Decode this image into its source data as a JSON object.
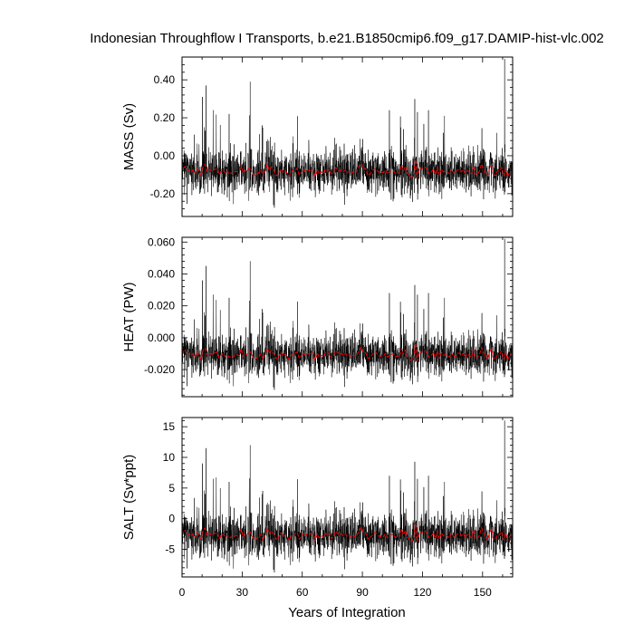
{
  "chart_data": {
    "type": "line",
    "title": "Indonesian Throughflow I Transports, b.e21.B1850cmip6.f09_g17.DAMIP-hist-vlc.002",
    "xlabel": "Years of Integration",
    "xlim": [
      0,
      165
    ],
    "x_ticks": [
      0,
      30,
      60,
      90,
      120,
      150
    ],
    "x_tick_labels": [
      "0",
      "30",
      "60",
      "90",
      "120",
      "150"
    ],
    "grid": false,
    "legend": "none",
    "colors": {
      "monthly": "#000000",
      "annual_mean": "#ff0000"
    },
    "panels": [
      {
        "name": "mass",
        "ylabel": "MASS (Sv)",
        "ylim": [
          -0.32,
          0.52
        ],
        "y_ticks": [
          -0.2,
          0.0,
          0.2,
          0.4
        ],
        "y_tick_labels": [
          "-0.20",
          "0.00",
          "0.20",
          "0.40"
        ],
        "baseline": -0.085,
        "typical_range": [
          -0.22,
          0.05
        ],
        "series": [
          {
            "kind": "monthly",
            "style": "thin black line, high-frequency variability"
          },
          {
            "kind": "annual_mean",
            "style": "red dashed line"
          }
        ],
        "spikes": [
          {
            "x": 10.2,
            "y": 0.31
          },
          {
            "x": 12.0,
            "y": 0.37
          },
          {
            "x": 15.5,
            "y": 0.24
          },
          {
            "x": 23.5,
            "y": 0.22
          },
          {
            "x": 34.0,
            "y": 0.39
          },
          {
            "x": 40.0,
            "y": 0.16
          },
          {
            "x": 103.5,
            "y": 0.24
          },
          {
            "x": 117.5,
            "y": 0.23
          },
          {
            "x": 123.0,
            "y": 0.24
          },
          {
            "x": 131.0,
            "y": 0.21
          },
          {
            "x": 157.0,
            "y": 0.12
          },
          {
            "x": 161.0,
            "y": 0.51
          }
        ]
      },
      {
        "name": "heat",
        "ylabel": "HEAT (PW)",
        "ylim": [
          -0.037,
          0.063
        ],
        "y_ticks": [
          -0.02,
          0.0,
          0.02,
          0.04,
          0.06
        ],
        "y_tick_labels": [
          "-0.020",
          "0.000",
          "0.020",
          "0.040",
          "0.060"
        ],
        "baseline": -0.011,
        "typical_range": [
          -0.026,
          0.005
        ],
        "series": [
          {
            "kind": "monthly",
            "style": "thin black line, high-frequency variability"
          },
          {
            "kind": "annual_mean",
            "style": "red dashed line"
          }
        ],
        "spikes": [
          {
            "x": 10.2,
            "y": 0.036
          },
          {
            "x": 12.0,
            "y": 0.045
          },
          {
            "x": 15.5,
            "y": 0.027
          },
          {
            "x": 23.5,
            "y": 0.025
          },
          {
            "x": 34.0,
            "y": 0.048
          },
          {
            "x": 40.0,
            "y": 0.018
          },
          {
            "x": 103.5,
            "y": 0.028
          },
          {
            "x": 117.5,
            "y": 0.027
          },
          {
            "x": 123.0,
            "y": 0.028
          },
          {
            "x": 131.0,
            "y": 0.025
          },
          {
            "x": 157.0,
            "y": 0.014
          },
          {
            "x": 161.0,
            "y": 0.062
          }
        ]
      },
      {
        "name": "salt",
        "ylabel": "SALT (Sv*ppt)",
        "ylim": [
          -9.5,
          16.5
        ],
        "y_ticks": [
          -5,
          0,
          5,
          10,
          15
        ],
        "y_tick_labels": [
          "-5",
          "0",
          "5",
          "10",
          "15"
        ],
        "baseline": -2.8,
        "typical_range": [
          -7.0,
          1.5
        ],
        "series": [
          {
            "kind": "monthly",
            "style": "thin black line, high-frequency variability"
          },
          {
            "kind": "annual_mean",
            "style": "red dashed line"
          }
        ],
        "spikes": [
          {
            "x": 10.2,
            "y": 9.0
          },
          {
            "x": 12.0,
            "y": 11.5
          },
          {
            "x": 15.5,
            "y": 6.5
          },
          {
            "x": 23.5,
            "y": 6.0
          },
          {
            "x": 34.0,
            "y": 12.0
          },
          {
            "x": 40.0,
            "y": 4.0
          },
          {
            "x": 103.5,
            "y": 7.0
          },
          {
            "x": 117.5,
            "y": 6.5
          },
          {
            "x": 123.0,
            "y": 7.0
          },
          {
            "x": 131.0,
            "y": 6.0
          },
          {
            "x": 157.0,
            "y": 3.0
          },
          {
            "x": 161.0,
            "y": 16.0
          }
        ]
      }
    ]
  }
}
